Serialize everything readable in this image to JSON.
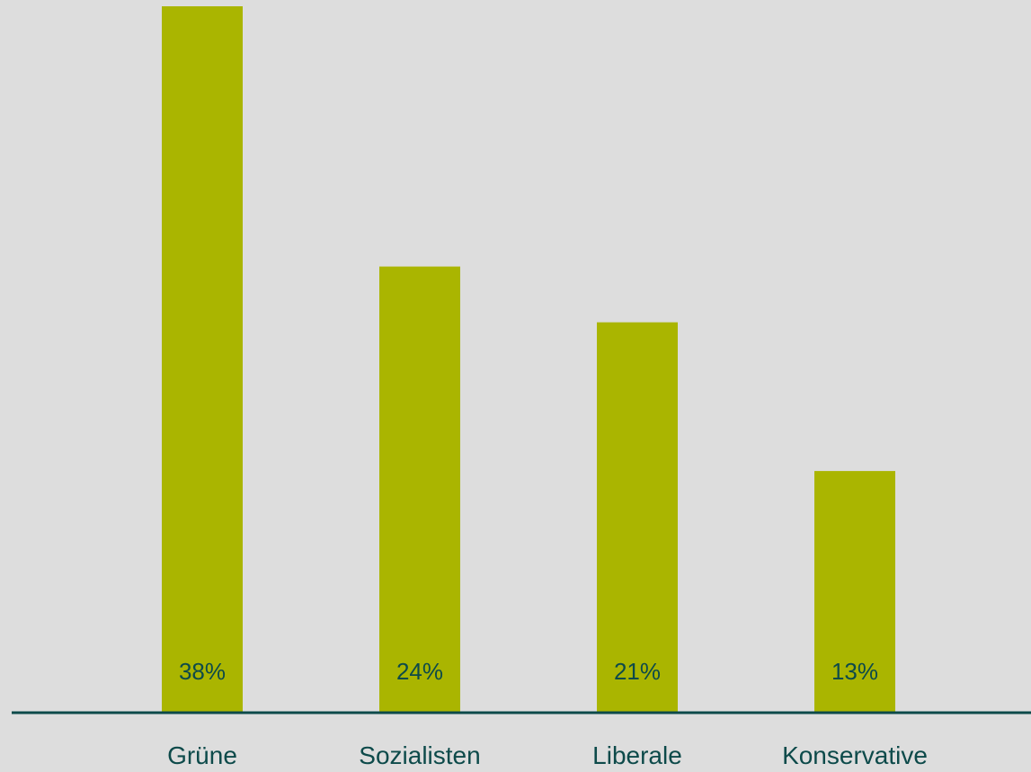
{
  "chart_data": {
    "type": "bar",
    "categories": [
      "Grüne",
      "Sozialisten",
      "Liberale",
      "Konservative"
    ],
    "values": [
      38,
      24,
      21,
      13
    ],
    "value_labels": [
      "38%",
      "24%",
      "21%",
      "13%"
    ],
    "title": "",
    "xlabel": "",
    "ylabel": "",
    "ylim": [
      0,
      38
    ],
    "grid": false,
    "legend": "none",
    "colors": {
      "bar": "#aab500",
      "axis": "#0d4a4a",
      "text": "#0d4a4a",
      "background": "#dddddd"
    }
  }
}
